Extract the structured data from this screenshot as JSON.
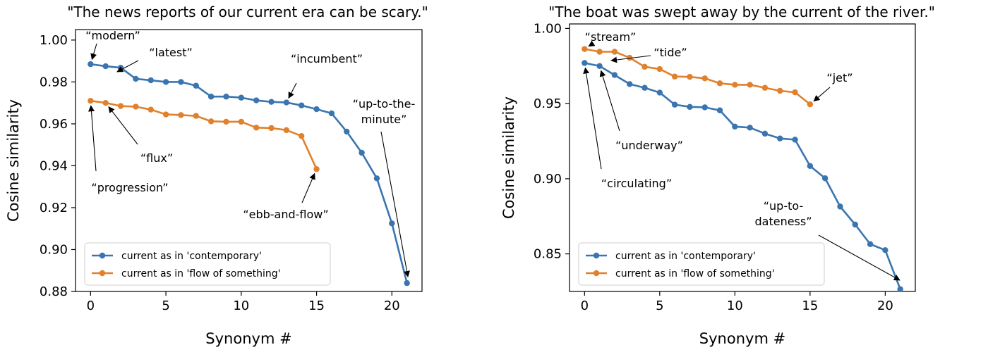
{
  "chart_data": [
    {
      "type": "line",
      "title": "\"The news reports of our current era can be scary.\"",
      "xlabel": "Synonym #",
      "ylabel": "Cosine similarity",
      "xlim": [
        -1,
        22
      ],
      "ylim": [
        0.88,
        1.005
      ],
      "xticks": [
        0,
        5,
        10,
        15,
        20
      ],
      "yticks": [
        0.88,
        0.9,
        0.92,
        0.94,
        0.96,
        0.98,
        1.0
      ],
      "ytick_labels": [
        "0.88",
        "0.90",
        "0.92",
        "0.94",
        "0.96",
        "0.98",
        "1.00"
      ],
      "legend_position": "bottom-left",
      "series": [
        {
          "name": "current as in 'contemporary'",
          "color": "#3a75b0",
          "x": [
            0,
            1,
            2,
            3,
            4,
            5,
            6,
            7,
            8,
            9,
            10,
            11,
            12,
            13,
            14,
            15,
            16,
            17,
            18,
            19,
            20,
            21
          ],
          "values": [
            0.9885,
            0.9875,
            0.9868,
            0.9815,
            0.9808,
            0.98,
            0.98,
            0.9782,
            0.973,
            0.973,
            0.9725,
            0.9712,
            0.9705,
            0.9702,
            0.9688,
            0.967,
            0.965,
            0.9563,
            0.9462,
            0.934,
            0.9125,
            0.884
          ]
        },
        {
          "name": "current as in 'flow of something'",
          "color": "#e1812c",
          "x": [
            0,
            1,
            2,
            3,
            4,
            5,
            6,
            7,
            8,
            9,
            10,
            11,
            12,
            13,
            14,
            15
          ],
          "values": [
            0.971,
            0.97,
            0.9685,
            0.9682,
            0.9668,
            0.9645,
            0.9642,
            0.9638,
            0.9612,
            0.961,
            0.961,
            0.9582,
            0.958,
            0.957,
            0.9542,
            0.9384
          ]
        }
      ],
      "annotations": [
        {
          "lines": [
            "“modern”"
          ],
          "series": 0,
          "x": 0
        },
        {
          "lines": [
            "“latest”"
          ],
          "series": 0,
          "x": 1
        },
        {
          "lines": [
            "“incumbent”"
          ],
          "series": 0,
          "x": 13
        },
        {
          "lines": [
            "“up-to-the-",
            "minute”"
          ],
          "series": 0,
          "x": 21
        },
        {
          "lines": [
            "“flux”"
          ],
          "series": 1,
          "x": 1
        },
        {
          "lines": [
            "“progression”"
          ],
          "series": 1,
          "x": 0
        },
        {
          "lines": [
            "“ebb-and-flow”"
          ],
          "series": 1,
          "x": 15
        }
      ]
    },
    {
      "type": "line",
      "title": "\"The boat was swept away by the current of the river.\"",
      "xlabel": "Synonym #",
      "ylabel": "Cosine similarity",
      "xlim": [
        -1,
        22
      ],
      "ylim": [
        0.825,
        1.003
      ],
      "xticks": [
        0,
        5,
        10,
        15,
        20
      ],
      "yticks": [
        0.85,
        0.9,
        0.95,
        1.0
      ],
      "ytick_labels": [
        "0.85",
        "0.90",
        "0.95",
        "1.00"
      ],
      "legend_position": "bottom-left",
      "series": [
        {
          "name": "current as in 'contemporary'",
          "color": "#3a75b0",
          "x": [
            0,
            1,
            2,
            3,
            4,
            5,
            6,
            7,
            8,
            9,
            10,
            11,
            12,
            13,
            14,
            15,
            16,
            17,
            18,
            19,
            20,
            21
          ],
          "values": [
            0.977,
            0.975,
            0.969,
            0.963,
            0.9605,
            0.9573,
            0.9493,
            0.9478,
            0.9475,
            0.9455,
            0.9347,
            0.934,
            0.93,
            0.9268,
            0.926,
            0.9085,
            0.9003,
            0.8815,
            0.8695,
            0.8565,
            0.8525,
            0.8265
          ]
        },
        {
          "name": "current as in 'flow of something'",
          "color": "#e1812c",
          "x": [
            0,
            1,
            2,
            3,
            4,
            5,
            6,
            7,
            8,
            9,
            10,
            11,
            12,
            13,
            14,
            15
          ],
          "values": [
            0.9863,
            0.9845,
            0.9845,
            0.9805,
            0.9745,
            0.973,
            0.968,
            0.9678,
            0.9668,
            0.9635,
            0.9625,
            0.9625,
            0.9605,
            0.9585,
            0.9575,
            0.9495
          ]
        }
      ],
      "annotations": [
        {
          "lines": [
            "“stream”"
          ],
          "series": 1,
          "x": 0
        },
        {
          "lines": [
            "“tide”"
          ],
          "series": 1,
          "x": 1
        },
        {
          "lines": [
            "“jet”"
          ],
          "series": 1,
          "x": 15
        },
        {
          "lines": [
            "“underway”"
          ],
          "series": 0,
          "x": 1
        },
        {
          "lines": [
            "“circulating”"
          ],
          "series": 0,
          "x": 0
        },
        {
          "lines": [
            "“up-to-",
            "dateness”"
          ],
          "series": 0,
          "x": 21
        }
      ]
    }
  ]
}
